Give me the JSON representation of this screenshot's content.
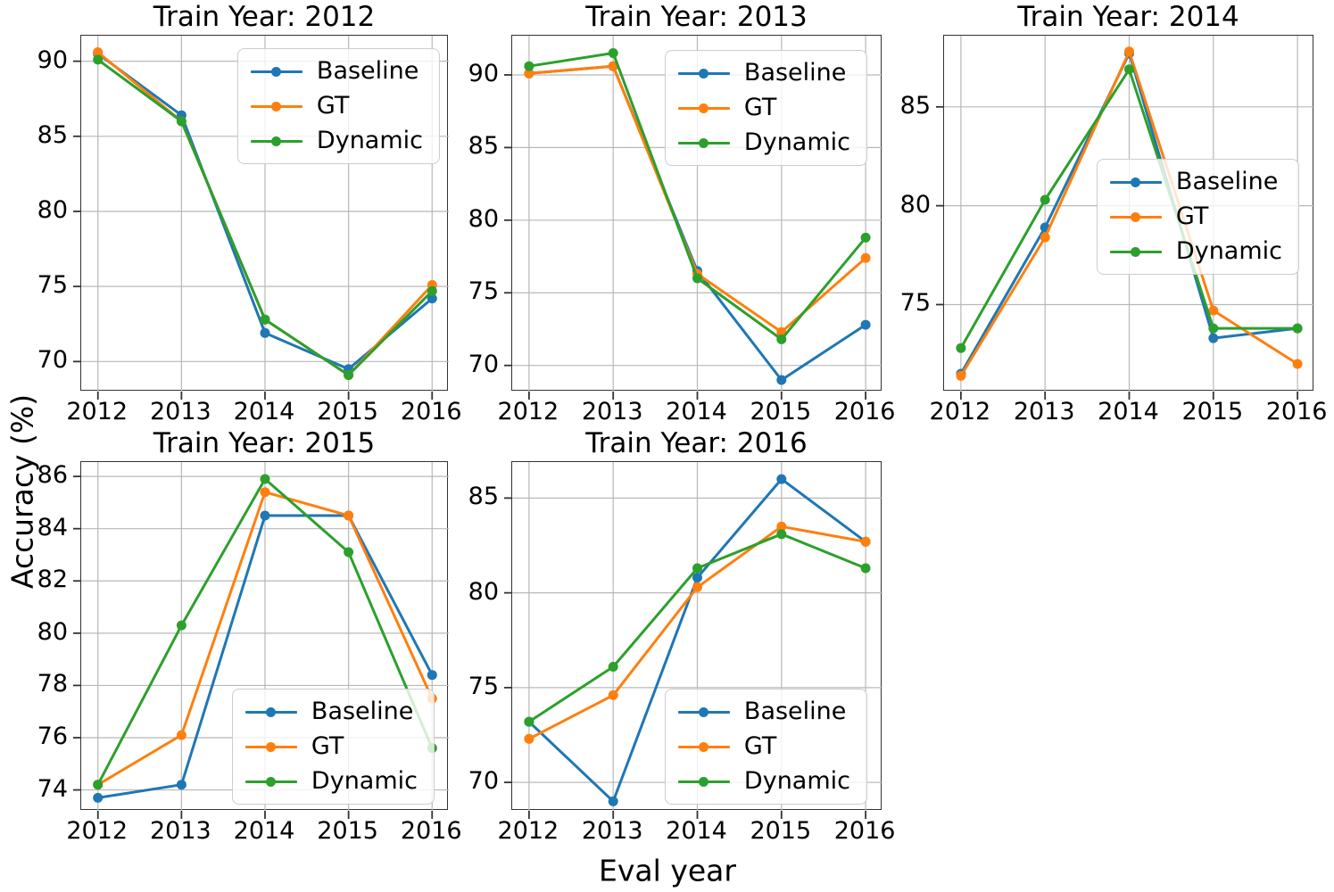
{
  "figure": {
    "ylabel": "Accuracy (%)",
    "xlabel": "Eval year",
    "background": "#ffffff",
    "grid_color": "#b8b8b8",
    "spine_color": "#333333",
    "series_colors": {
      "Baseline": "#1f77b4",
      "GT": "#ff7f0e",
      "Dynamic": "#2ca02c"
    }
  },
  "chart_data": [
    {
      "type": "line",
      "title": "Train Year: 2012",
      "x": [
        2012,
        2013,
        2014,
        2015,
        2016
      ],
      "xticklabels": [
        "2012",
        "2013",
        "2014",
        "2015",
        "2016"
      ],
      "yticks": [
        70,
        75,
        80,
        85,
        90
      ],
      "ylim": [
        68.0,
        91.7
      ],
      "grid": true,
      "legend_pos": "upper-right",
      "series": [
        {
          "name": "Baseline",
          "color": "#1f77b4",
          "values": [
            90.5,
            86.4,
            71.9,
            69.5,
            74.2
          ]
        },
        {
          "name": "GT",
          "color": "#ff7f0e",
          "values": [
            90.6,
            86.0,
            72.8,
            69.1,
            75.1
          ]
        },
        {
          "name": "Dynamic",
          "color": "#2ca02c",
          "values": [
            90.1,
            86.0,
            72.8,
            69.1,
            74.7
          ]
        }
      ]
    },
    {
      "type": "line",
      "title": "Train Year: 2013",
      "x": [
        2012,
        2013,
        2014,
        2015,
        2016
      ],
      "xticklabels": [
        "2012",
        "2013",
        "2014",
        "2015",
        "2016"
      ],
      "yticks": [
        70,
        75,
        80,
        85,
        90
      ],
      "ylim": [
        68.2,
        92.7
      ],
      "grid": true,
      "legend_pos": "upper-right",
      "series": [
        {
          "name": "Baseline",
          "color": "#1f77b4",
          "values": [
            90.1,
            90.6,
            76.5,
            69.0,
            72.8
          ]
        },
        {
          "name": "GT",
          "color": "#ff7f0e",
          "values": [
            90.1,
            90.6,
            76.3,
            72.3,
            77.4
          ]
        },
        {
          "name": "Dynamic",
          "color": "#2ca02c",
          "values": [
            90.6,
            91.5,
            76.0,
            71.8,
            78.8
          ]
        }
      ]
    },
    {
      "type": "line",
      "title": "Train Year: 2014",
      "x": [
        2012,
        2013,
        2014,
        2015,
        2016
      ],
      "xticklabels": [
        "2012",
        "2013",
        "2014",
        "2015",
        "2016"
      ],
      "yticks": [
        75,
        80,
        85
      ],
      "ylim": [
        70.6,
        88.6
      ],
      "grid": true,
      "legend_pos": "center-right",
      "series": [
        {
          "name": "Baseline",
          "color": "#1f77b4",
          "values": [
            71.5,
            78.9,
            87.7,
            73.3,
            73.8
          ]
        },
        {
          "name": "GT",
          "color": "#ff7f0e",
          "values": [
            71.4,
            78.4,
            87.8,
            74.7,
            72.0
          ]
        },
        {
          "name": "Dynamic",
          "color": "#2ca02c",
          "values": [
            72.8,
            80.3,
            86.9,
            73.8,
            73.8
          ]
        }
      ]
    },
    {
      "type": "line",
      "title": "Train Year: 2015",
      "x": [
        2012,
        2013,
        2014,
        2015,
        2016
      ],
      "xticklabels": [
        "2012",
        "2013",
        "2014",
        "2015",
        "2016"
      ],
      "yticks": [
        74,
        76,
        78,
        80,
        82,
        84,
        86
      ],
      "ylim": [
        73.2,
        86.55
      ],
      "grid": true,
      "legend_pos": "lower-right",
      "series": [
        {
          "name": "Baseline",
          "color": "#1f77b4",
          "values": [
            73.7,
            74.2,
            84.5,
            84.5,
            78.4
          ]
        },
        {
          "name": "GT",
          "color": "#ff7f0e",
          "values": [
            74.2,
            76.1,
            85.4,
            84.5,
            77.5
          ]
        },
        {
          "name": "Dynamic",
          "color": "#2ca02c",
          "values": [
            74.2,
            80.3,
            85.9,
            83.1,
            75.6
          ]
        }
      ]
    },
    {
      "type": "line",
      "title": "Train Year: 2016",
      "x": [
        2012,
        2013,
        2014,
        2015,
        2016
      ],
      "xticklabels": [
        "2012",
        "2013",
        "2014",
        "2015",
        "2016"
      ],
      "yticks": [
        70,
        75,
        80,
        85
      ],
      "ylim": [
        68.5,
        86.9
      ],
      "grid": true,
      "legend_pos": "lower-right",
      "series": [
        {
          "name": "Baseline",
          "color": "#1f77b4",
          "values": [
            73.2,
            69.0,
            80.8,
            86.0,
            82.7
          ]
        },
        {
          "name": "GT",
          "color": "#ff7f0e",
          "values": [
            72.3,
            74.6,
            80.3,
            83.5,
            82.7
          ]
        },
        {
          "name": "Dynamic",
          "color": "#2ca02c",
          "values": [
            73.2,
            76.1,
            81.3,
            83.1,
            81.3
          ]
        }
      ]
    }
  ]
}
